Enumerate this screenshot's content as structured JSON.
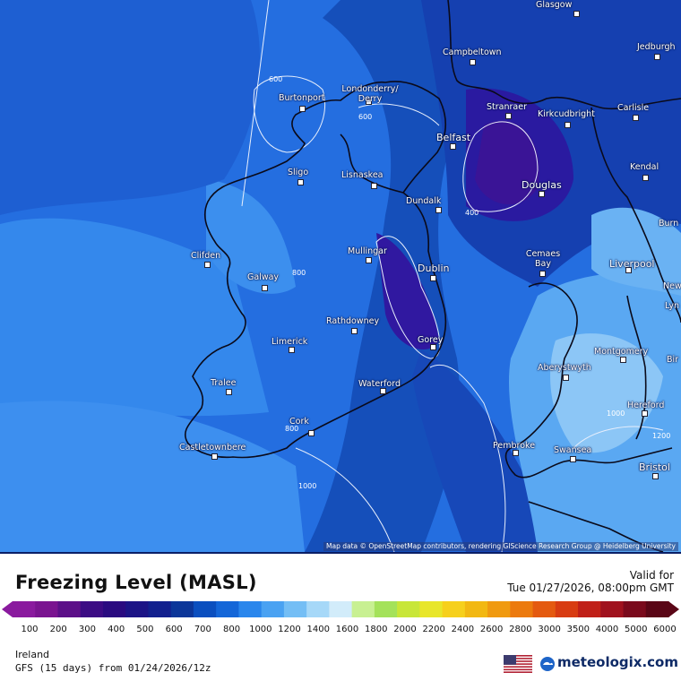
{
  "map": {
    "attribution": "Map data © OpenStreetMap contributors, rendering GIScience Research Group @ Heidelberg University",
    "cities": [
      {
        "name": "Glasgow"
      },
      {
        "name": "Jedburgh"
      },
      {
        "name": "Campbeltown"
      },
      {
        "name": "Londonderry/ Derry"
      },
      {
        "name": "Burtonport"
      },
      {
        "name": "Stranraer"
      },
      {
        "name": "Kirkcudbright"
      },
      {
        "name": "Carlisle"
      },
      {
        "name": "Belfast"
      },
      {
        "name": "Sligo"
      },
      {
        "name": "Lisnaskea"
      },
      {
        "name": "Kendal"
      },
      {
        "name": "Douglas"
      },
      {
        "name": "Dundalk"
      },
      {
        "name": "Burn"
      },
      {
        "name": "Clifden"
      },
      {
        "name": "Mullingar"
      },
      {
        "name": "Cemaes Bay"
      },
      {
        "name": "Liverpool"
      },
      {
        "name": "Dublin"
      },
      {
        "name": "Galway"
      },
      {
        "name": "Newc"
      },
      {
        "name": "Lyn"
      },
      {
        "name": "Rathdowney"
      },
      {
        "name": "Limerick"
      },
      {
        "name": "Gorey"
      },
      {
        "name": "Montgomery"
      },
      {
        "name": "Bir"
      },
      {
        "name": "Aberystwyth"
      },
      {
        "name": "Tralee"
      },
      {
        "name": "Waterford"
      },
      {
        "name": "Hereford"
      },
      {
        "name": "Cork"
      },
      {
        "name": "Castletownbere"
      },
      {
        "name": "Pembroke"
      },
      {
        "name": "Swansea"
      },
      {
        "name": "Bristol"
      }
    ],
    "contour_labels": [
      "600",
      "600",
      "400",
      "800",
      "800",
      "1000",
      "1000",
      "1200",
      "600"
    ]
  },
  "legend": {
    "title": "Freezing Level (MASL)",
    "valid_label": "Valid for",
    "valid_date": "Tue 01/27/2026, 08:00pm GMT",
    "ticks": [
      "100",
      "200",
      "300",
      "400",
      "500",
      "600",
      "700",
      "800",
      "1000",
      "1200",
      "1400",
      "1600",
      "1800",
      "2000",
      "2200",
      "2400",
      "2600",
      "2800",
      "3000",
      "3500",
      "4000",
      "5000",
      "6000"
    ],
    "colors": [
      "#8a1a9e",
      "#7a1490",
      "#5c1088",
      "#3c0c84",
      "#2a0b80",
      "#1c1486",
      "#12208e",
      "#0c3699",
      "#0b4fbf",
      "#1466d8",
      "#2a86ec",
      "#4aa2f2",
      "#74bef5",
      "#a6d8f8",
      "#d2ecfa",
      "#c8f092",
      "#a4e25a",
      "#c8e638",
      "#e8e62a",
      "#f6d01c",
      "#f2b812",
      "#f09a10",
      "#ec7a0e",
      "#e45a10",
      "#d83c12",
      "#c02018",
      "#a0121e",
      "#7a0a1c",
      "#5a0616"
    ]
  },
  "footer": {
    "region": "Ireland",
    "model": "GFS (15 days) from 01/24/2026/12z",
    "brand": "meteologix.com"
  }
}
